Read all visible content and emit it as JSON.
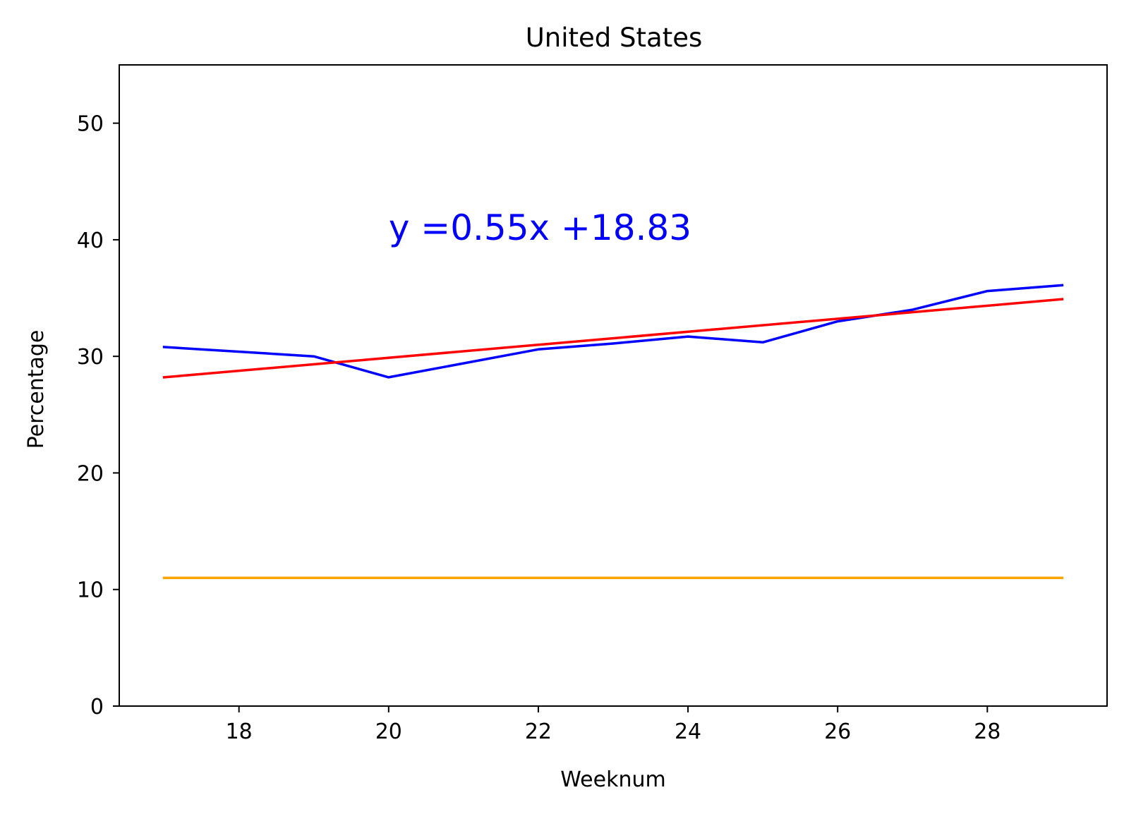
{
  "chart_data": {
    "type": "line",
    "title": "United States",
    "xlabel": "Weeknum",
    "ylabel": "Percentage",
    "xlim": [
      16.4,
      29.6
    ],
    "ylim": [
      0,
      55
    ],
    "x_ticks": [
      18,
      20,
      22,
      24,
      26,
      28
    ],
    "y_ticks": [
      0,
      10,
      20,
      30,
      40,
      50
    ],
    "grid": false,
    "series": [
      {
        "color": "#0000ff",
        "kind": "line",
        "x": [
          17,
          19,
          20,
          22,
          23,
          24,
          25,
          26,
          27,
          28,
          29
        ],
        "y": [
          30.8,
          30.0,
          28.2,
          30.6,
          31.1,
          31.7,
          31.2,
          33.0,
          34.0,
          35.6,
          36.1
        ]
      },
      {
        "color": "#ff0000",
        "kind": "fit-line",
        "x": [
          17,
          29
        ],
        "y": [
          28.2,
          34.9
        ]
      },
      {
        "color": "#ffa500",
        "kind": "line",
        "x": [
          17,
          29
        ],
        "y": [
          11.0,
          11.0
        ]
      }
    ],
    "annotations": [
      {
        "text": "y =0.55x +18.83",
        "x": 20,
        "y": 40,
        "color": "#0000ff"
      }
    ]
  }
}
